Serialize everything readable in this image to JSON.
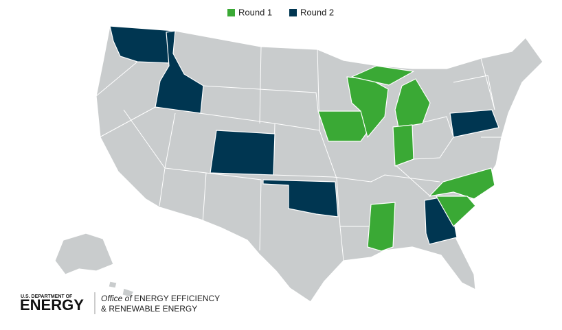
{
  "legend": [
    {
      "label": "Round 1",
      "color": "#3aa935"
    },
    {
      "label": "Round 2",
      "color": "#003651"
    }
  ],
  "logo": {
    "agency_top": "U.S. DEPARTMENT OF",
    "agency_main": "ENERGY",
    "office_prefix": "Office of",
    "office_line1": "ENERGY EFFICIENCY",
    "office_line2": "& RENEWABLE ENERGY"
  }
}
